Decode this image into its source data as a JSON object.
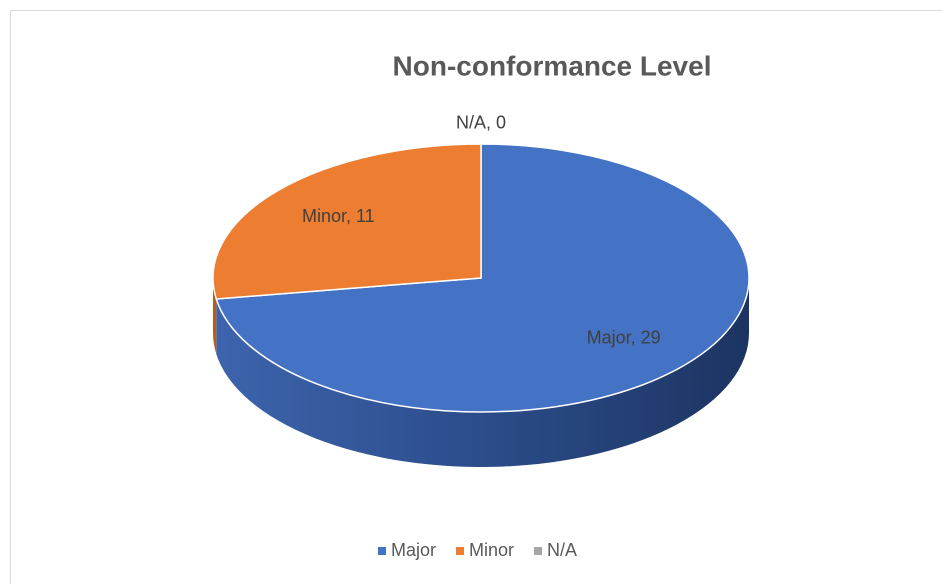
{
  "chart_data": {
    "type": "pie",
    "title": "Non-conformance Level",
    "categories": [
      "Major",
      "Minor",
      "N/A"
    ],
    "values": [
      29,
      11,
      0
    ],
    "value_labels": [
      "Major, 29",
      "Minor, 11",
      "N/A, 0"
    ],
    "colors": [
      "#4472c4",
      "#ed7d31",
      "#a5a5a5"
    ],
    "legend": "bottom"
  }
}
